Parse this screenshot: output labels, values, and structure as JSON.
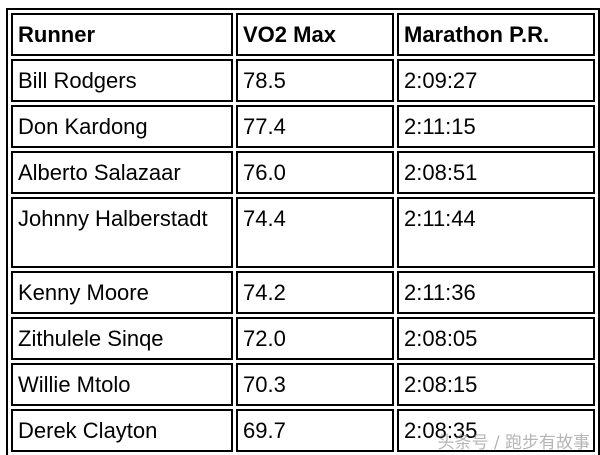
{
  "table": {
    "headers": [
      "Runner",
      "VO2 Max",
      "Marathon P.R."
    ],
    "rows": [
      {
        "runner": "Bill Rodgers",
        "vo2": "78.5",
        "pr": "2:09:27"
      },
      {
        "runner": "Don Kardong",
        "vo2": "77.4",
        "pr": "2:11:15"
      },
      {
        "runner": "Alberto Salazaar",
        "vo2": "76.0",
        "pr": "2:08:51"
      },
      {
        "runner": "Johnny Halberstadt",
        "vo2": "74.4",
        "pr": "2:11:44"
      },
      {
        "runner": "Kenny Moore",
        "vo2": "74.2",
        "pr": "2:11:36"
      },
      {
        "runner": "Zithulele Sinqe",
        "vo2": "72.0",
        "pr": "2:08:05"
      },
      {
        "runner": "Willie Mtolo",
        "vo2": "70.3",
        "pr": "2:08:15"
      },
      {
        "runner": "Derek Clayton",
        "vo2": "69.7",
        "pr": "2:08:35"
      }
    ]
  },
  "watermark": "头条号 / 跑步有故事"
}
